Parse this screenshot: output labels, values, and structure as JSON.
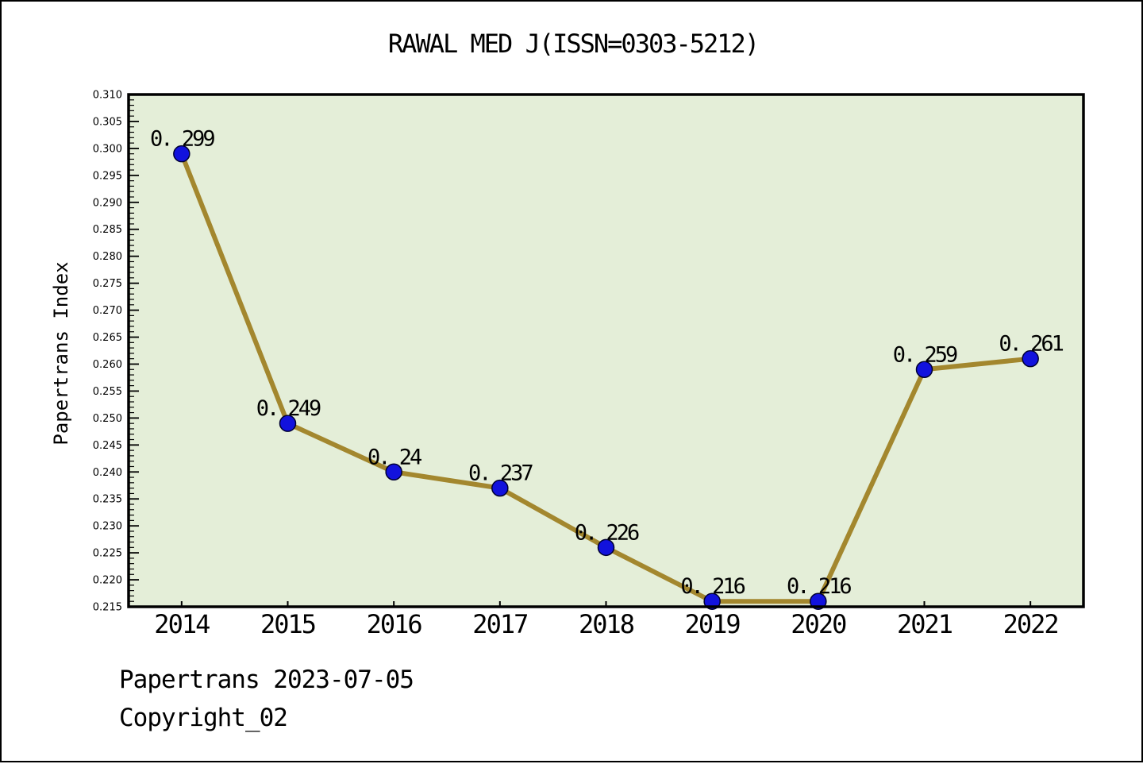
{
  "header": {
    "title": "RAWAL MED J(ISSN=0303-5212)"
  },
  "footer": {
    "lines": [
      "Papertrans 2023-07-05",
      "Copyright_02"
    ]
  },
  "chart_data": {
    "type": "line",
    "title": "RAWAL MED J(ISSN=0303-5212)",
    "categories": [
      "2014",
      "2015",
      "2016",
      "2017",
      "2018",
      "2019",
      "2020",
      "2021",
      "2022"
    ],
    "series": [
      {
        "name": "Papertrans Index",
        "values": [
          0.299,
          0.249,
          0.24,
          0.237,
          0.226,
          0.216,
          0.216,
          0.259,
          0.261
        ]
      }
    ],
    "point_labels": [
      "0. 299",
      "0. 249",
      "0. 24",
      "0. 237",
      "0. 226",
      "0. 216",
      "0. 216",
      "0. 259",
      "0. 261"
    ],
    "xlabel": "",
    "ylabel": "Papertrans Index",
    "ylim": [
      0.215,
      0.31
    ],
    "y_major_step": 0.005,
    "y_minor_step": 0.001,
    "y_tick_labels": [
      "0.215",
      "0.220",
      "0.225",
      "0.230",
      "0.235",
      "0.240",
      "0.245",
      "0.250",
      "0.255",
      "0.260",
      "0.265",
      "0.270",
      "0.275",
      "0.280",
      "0.285",
      "0.290",
      "0.295",
      "0.300",
      "0.305",
      "0.310"
    ],
    "grid": false,
    "legend": false,
    "colors": {
      "line": "#a3872e",
      "marker_fill": "#1212dd",
      "marker_edge": "#000033",
      "plot_background": "#e4eed8",
      "frame": "#000000",
      "text": "#000000",
      "page_background": "#ffffff"
    }
  }
}
